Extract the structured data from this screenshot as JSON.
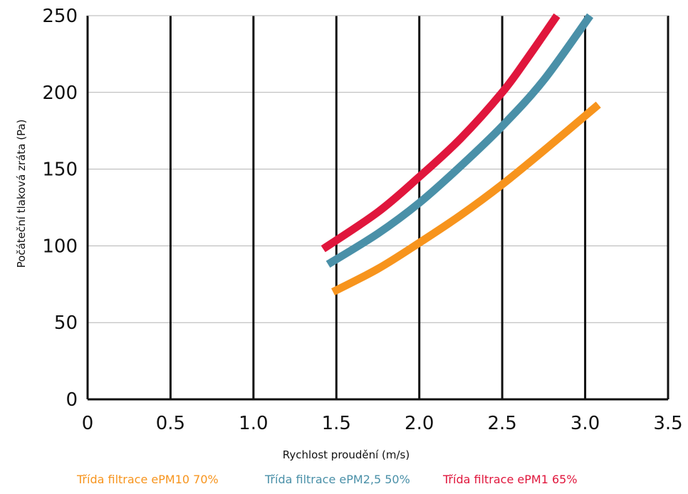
{
  "chart_data": {
    "type": "line",
    "title": "",
    "xlabel": "Rychlost proudění (m/s)",
    "ylabel": "Počáteční tlaková zráta (Pa)",
    "xlim": [
      0,
      3.5
    ],
    "ylim": [
      0,
      250
    ],
    "xticks": [
      0,
      0.5,
      1.0,
      1.5,
      2.0,
      2.5,
      3.0,
      3.5
    ],
    "xtick_labels": [
      "0",
      "0.5",
      "1.0",
      "1.5",
      "2.0",
      "2.5",
      "3.0",
      "3.5"
    ],
    "yticks": [
      0,
      50,
      100,
      150,
      200,
      250
    ],
    "ytick_labels": [
      "0",
      "50",
      "100",
      "150",
      "200",
      "250"
    ],
    "grid": true,
    "legend_position": "bottom",
    "series": [
      {
        "name": "Třída filtrace ePM10 70%",
        "color": "#F7941D",
        "x": [
          1.48,
          1.75,
          2.0,
          2.25,
          2.5,
          2.75,
          3.08
        ],
        "y": [
          70,
          85,
          102,
          120,
          140,
          162,
          192
        ]
      },
      {
        "name": "Třída filtrace ePM2,5 50%",
        "color": "#4A90A8",
        "x": [
          1.45,
          1.75,
          2.0,
          2.25,
          2.5,
          2.75,
          3.03
        ],
        "y": [
          88,
          108,
          128,
          152,
          178,
          208,
          250
        ]
      },
      {
        "name": "Třída filtrace ePM1 65%",
        "color": "#E0163C",
        "x": [
          1.42,
          1.75,
          2.0,
          2.25,
          2.5,
          2.65,
          2.83
        ],
        "y": [
          98,
          122,
          145,
          170,
          200,
          222,
          250
        ]
      }
    ]
  }
}
